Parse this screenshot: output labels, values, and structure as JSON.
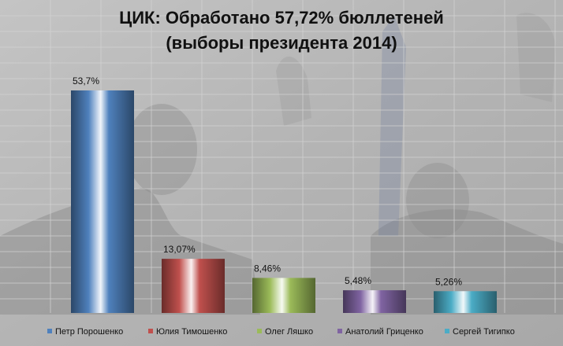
{
  "chart_data": {
    "type": "bar",
    "title": "ЦИК: Обработано 57,72% бюллетеней",
    "subtitle": "(выборы президента 2014)",
    "xlabel": "",
    "ylabel": "",
    "ylim": [
      0,
      60
    ],
    "grid": true,
    "legend_position": "bottom",
    "series": [
      {
        "name": "Петр Порошенко",
        "value": 53.7,
        "label": "53,7%",
        "color": "#4f81bd"
      },
      {
        "name": "Юлия Тимошенко",
        "value": 13.07,
        "label": "13,07%",
        "color": "#c0504d"
      },
      {
        "name": "Олег Ляшко",
        "value": 8.46,
        "label": "8,46%",
        "color": "#9bbb59"
      },
      {
        "name": "Анатолий Гриценко",
        "value": 5.48,
        "label": "5,48%",
        "color": "#8064a2"
      },
      {
        "name": "Сергей Тигипко",
        "value": 5.26,
        "label": "5,26%",
        "color": "#4bacc6"
      }
    ]
  }
}
